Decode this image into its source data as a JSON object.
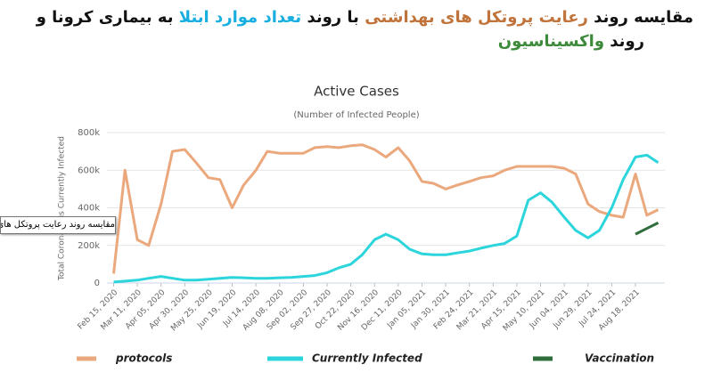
{
  "chart_data": {
    "type": "line",
    "title_lines": [
      [
        {
          "text": "مقایسه روند ",
          "color": "#111111"
        },
        {
          "text": "رعایت پروتکل های بهداشتی",
          "color": "#c0733a"
        },
        {
          "text": " با روند ",
          "color": "#111111"
        },
        {
          "text": "تعداد موارد ابتلا",
          "color": "#18aee0"
        },
        {
          "text": " به بیماری کرونا و",
          "color": "#111111"
        }
      ],
      [
        {
          "text": "روند ",
          "color": "#111111"
        },
        {
          "text": "واکسیناسیون",
          "color": "#3d8a3a"
        }
      ]
    ],
    "title": "Active Cases",
    "subtitle": "(Number of Infected People)",
    "y_label": "Total Coronavirus Currently Infected",
    "tooltip": "مقایسه روند رعایت پروتکل های بهداشتی",
    "x": [
      "Feb 15, 2020",
      "Feb 27, 2020",
      "Mar 11, 2020",
      "Mar 23, 2020",
      "Apr 05, 2020",
      "Apr 17, 2020",
      "Apr 30, 2020",
      "May 12, 2020",
      "May 25, 2020",
      "Jun 06, 2020",
      "Jun 19, 2020",
      "Jul 01, 2020",
      "Jul 14, 2020",
      "Jul 26, 2020",
      "Aug 08, 2020",
      "Aug 20, 2020",
      "Sep 02, 2020",
      "Sep 14, 2020",
      "Sep 27, 2020",
      "Oct 09, 2020",
      "Oct 22, 2020",
      "Nov 03, 2020",
      "Nov 16, 2020",
      "Nov 28, 2020",
      "Dec 11, 2020",
      "Dec 23, 2020",
      "Jan 05, 2021",
      "Jan 17, 2021",
      "Jan 30, 2021",
      "Feb 11, 2021",
      "Feb 24, 2021",
      "Mar 08, 2021",
      "Mar 21, 2021",
      "Apr 02, 2021",
      "Apr 15, 2021",
      "Apr 27, 2021",
      "May 10, 2021",
      "May 22, 2021",
      "Jun 04, 2021",
      "Jun 16, 2021",
      "Jun 29, 2021",
      "Jul 11, 2021",
      "Jul 24, 2021",
      "Aug 05, 2021",
      "Aug 18, 2021",
      "Aug 30, 2021",
      "Sep 11, 2021"
    ],
    "series": [
      {
        "name": "protocols",
        "color": "#eba87c",
        "values": [
          50000,
          600000,
          230000,
          200000,
          420000,
          700000,
          710000,
          640000,
          560000,
          550000,
          400000,
          520000,
          600000,
          700000,
          690000,
          690000,
          690000,
          720000,
          725000,
          720000,
          730000,
          735000,
          710000,
          670000,
          720000,
          650000,
          540000,
          530000,
          500000,
          520000,
          540000,
          560000,
          570000,
          600000,
          620000,
          620000,
          620000,
          620000,
          610000,
          580000,
          420000,
          380000,
          360000,
          350000,
          580000,
          360000,
          390000
        ]
      },
      {
        "name": "Currently Infected",
        "color": "#2bd5db",
        "values": [
          5000,
          10000,
          15000,
          25000,
          35000,
          25000,
          15000,
          15000,
          20000,
          25000,
          30000,
          28000,
          25000,
          25000,
          28000,
          30000,
          35000,
          40000,
          55000,
          80000,
          100000,
          150000,
          230000,
          260000,
          230000,
          180000,
          155000,
          150000,
          150000,
          160000,
          170000,
          185000,
          200000,
          210000,
          250000,
          440000,
          480000,
          430000,
          350000,
          280000,
          240000,
          280000,
          400000,
          550000,
          670000,
          680000,
          640000
        ]
      },
      {
        "name": "Vaccination",
        "color": "#2f6e3c",
        "values": [
          null,
          null,
          null,
          null,
          null,
          null,
          null,
          null,
          null,
          null,
          null,
          null,
          null,
          null,
          null,
          null,
          null,
          null,
          null,
          null,
          null,
          null,
          null,
          null,
          null,
          null,
          null,
          null,
          null,
          null,
          null,
          null,
          null,
          null,
          null,
          null,
          null,
          null,
          null,
          null,
          null,
          null,
          null,
          null,
          260000,
          290000,
          320000
        ]
      }
    ],
    "xlim": [
      "Feb 08, 2020",
      "Sep 18, 2021"
    ],
    "xticks": [
      "Feb 15, 2020",
      "Mar 11, 2020",
      "Apr 05, 2020",
      "Apr 30, 2020",
      "May 25, 2020",
      "Jun 19, 2020",
      "Jul 14, 2020",
      "Aug 08, 2020",
      "Sep 02, 2020",
      "Sep 27, 2020",
      "Oct 22, 2020",
      "Nov 16, 2020",
      "Dec 11, 2020",
      "Jan 05, 2021",
      "Jan 30, 2021",
      "Feb 24, 2021",
      "Mar 21, 2021",
      "Apr 15, 2021",
      "May 10, 2021",
      "Jun 04, 2021",
      "Jun 29, 2021",
      "Jul 24, 2021",
      "Aug 18, 2021"
    ],
    "ylim": [
      0,
      800000
    ],
    "yticks": [
      0,
      {
        "value": 200000,
        "label": "200k"
      },
      {
        "value": 400000,
        "label": "400k"
      },
      {
        "value": 600000,
        "label": "600k"
      },
      {
        "value": 800000,
        "label": "800k"
      }
    ],
    "grid": true
  }
}
